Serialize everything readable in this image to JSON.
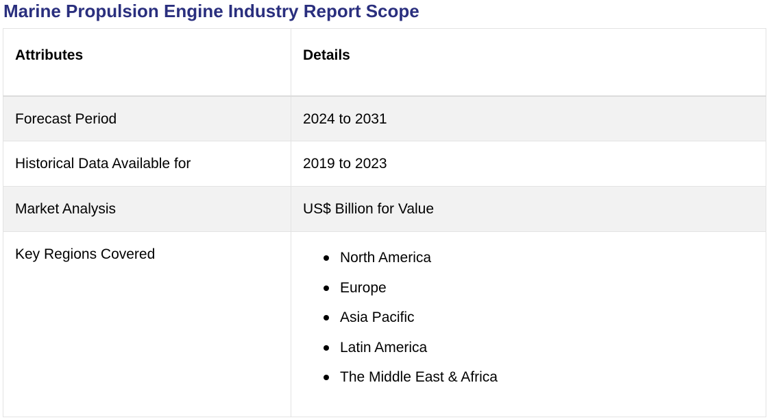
{
  "title": "Marine Propulsion Engine Industry Report Scope",
  "colors": {
    "title": "#2a2f7e",
    "shaded_row": "#f2f2f2",
    "border": "#e3e3e3"
  },
  "table": {
    "headers": [
      "Attributes",
      "Details"
    ],
    "rows": [
      {
        "attribute": "Forecast Period",
        "detail": "2024 to 2031"
      },
      {
        "attribute": "Historical Data Available for",
        "detail": "2019 to 2023"
      },
      {
        "attribute": "Market Analysis",
        "detail": "US$ Billion for Value"
      },
      {
        "attribute": "Key Regions Covered",
        "detail_list": [
          "North America",
          "Europe",
          "Asia Pacific",
          "Latin America",
          "The Middle East & Africa"
        ]
      }
    ]
  }
}
